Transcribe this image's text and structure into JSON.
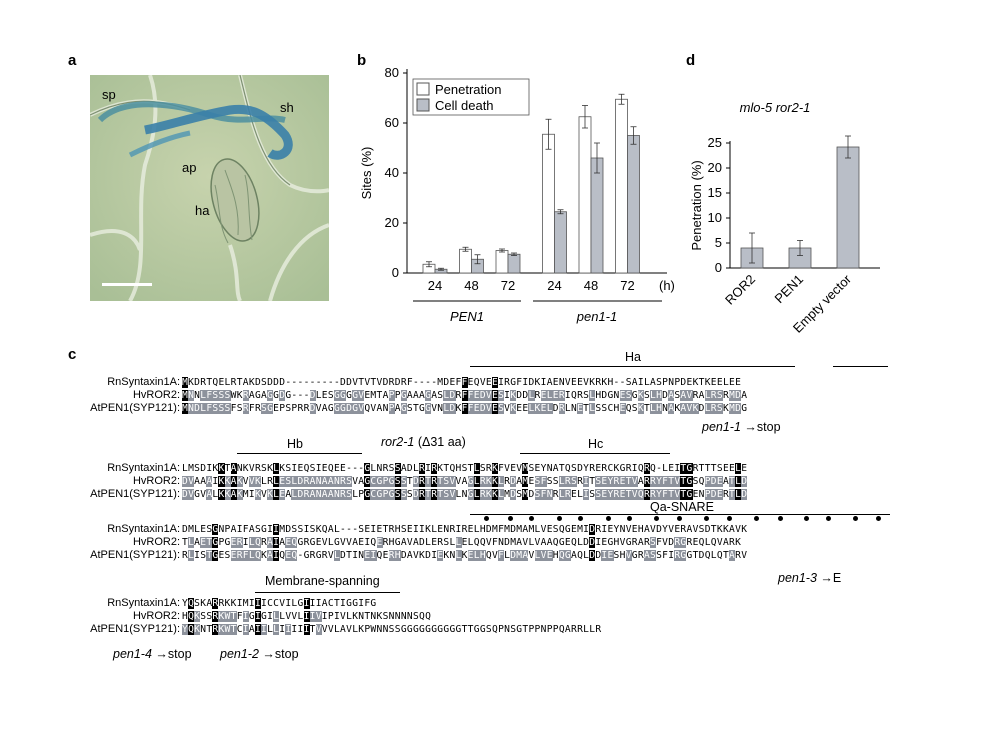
{
  "panels": {
    "a": "a",
    "b": "b",
    "c": "c",
    "d": "d"
  },
  "micro_labels": {
    "sp": "sp",
    "sh": "sh",
    "ap": "ap",
    "ha": "ha"
  },
  "chart_b": {
    "type": "bar",
    "ylabel": "Sites (%)",
    "ylim": [
      0,
      80
    ],
    "yticks": [
      "0",
      "20",
      "40",
      "60",
      "80"
    ],
    "x_unit": "(h)",
    "categories": [
      "24",
      "48",
      "72",
      "24",
      "48",
      "72"
    ],
    "groups": [
      "PEN1",
      "pen1-1"
    ],
    "series": [
      {
        "name": "Penetration",
        "values": [
          3.5,
          9.5,
          9,
          55.5,
          62.5,
          69.5
        ],
        "errors": [
          1,
          0.8,
          0.6,
          6,
          4.5,
          2
        ]
      },
      {
        "name": "Cell death",
        "values": [
          1.5,
          5.5,
          7.5,
          24.5,
          46,
          55
        ],
        "errors": [
          0.4,
          1.8,
          0.5,
          0.8,
          6,
          3.5
        ]
      }
    ],
    "colors": {
      "penetration": "#ffffff",
      "cell_death": "#b9bec7"
    }
  },
  "chart_d": {
    "type": "bar",
    "title": "mlo-5 ror2-1",
    "ylabel": "Penetration (%)",
    "ylim": [
      0,
      25
    ],
    "yticks": [
      "0",
      "5",
      "10",
      "15",
      "20",
      "25"
    ],
    "categories": [
      "ROR2",
      "PEN1",
      "Empty vector"
    ],
    "values": [
      4,
      4,
      24.2
    ],
    "errors": [
      3,
      1.5,
      2.2
    ],
    "color": "#b9bec7"
  },
  "chart_data": [
    {
      "type": "bar",
      "ylabel": "Sites (%)",
      "ylim": [
        0,
        80
      ],
      "x_unit": "(h)",
      "categories": [
        "24",
        "48",
        "72",
        "24",
        "48",
        "72"
      ],
      "groups": [
        "PEN1",
        "pen1-1"
      ],
      "series": [
        {
          "name": "Penetration",
          "values": [
            3.5,
            9.5,
            9,
            55.5,
            62.5,
            69.5
          ]
        },
        {
          "name": "Cell death",
          "values": [
            1.5,
            5.5,
            7.5,
            24.5,
            46,
            55
          ]
        }
      ]
    },
    {
      "type": "bar",
      "title": "mlo-5 ror2-1",
      "ylabel": "Penetration (%)",
      "ylim": [
        0,
        25
      ],
      "categories": [
        "ROR2",
        "PEN1",
        "Empty vector"
      ],
      "values": [
        4,
        4,
        24.2
      ]
    }
  ],
  "alignment": {
    "names": [
      "RnSyntaxin1A:",
      "HvROR2:",
      "AtPEN1(SYP121):"
    ],
    "blocks": [
      {
        "rows": [
          "MKDRTQELRTAKDSDDD---------DDVTVTVDRDRF----MDEFFEQVEEIRGFIDKIAENVEEVKRKH--SAILASPNPDEKTKEELEE",
          "MNNLFSSSWKRAGAGGDG---DLESGGGGVEMTAPPGAAAGASLDRFFEDVESIKDDLRELERIQRSLHDGNESGKSLHDASAVRALRSRMDA",
          "MNDLFSSSFSRFRSGEPSPRRDVAGGGDGVQVANPAGSTGGVNLDKFFEDVESVKEELKELDRLNETLSSCHEQSKTLHNAKAVKDLRSKMDG"
        ]
      },
      {
        "rows": [
          "LMSDIKKTANKVRSKLKSIEQSIEQEE---GLNRSSADLRIRKTQHSTLSRKFVEVMSEYNATQSDYRERCKGRIQRQ-LEITGRTTTSEELE",
          "DVAAAIKKAKVVKLRLESLDRANAANRSVAGCGPGSSTDRTRTSVVAGLRKKLRDAMESFSSLRSRITSEYRETVARRYFTVTGSQPDEATLD",
          "DVGVALKKAKMIKVKLEALDRANAANRSLPGCGPGSSSDRTRTSVLNGLRKKLMDSMDSFNRLRELISSEYRETVQRRYFTVTGENPDERTLD"
        ]
      },
      {
        "rows": [
          "DMLESGNPAIFASGIIMDSSISKQAL---SEIETRHSEIIKLENRIRELHDMFMDMAMLVESQGEMIDRIEYNVEHAVDYVERAVSDTKKAVK",
          "TLAETGPGERILQRAIAEQGRGEVLGVVAEIQERHGAVADLERSLLELQQVFNDMAVLVAAQGEQLDDIEGHVGRARSFVDRGREQLQVARK",
          "RLISTGESERFLQKAIQEQ-GRGRVLDTINEIQERHDAVKDIEKNLKELHQVFLDMAVLVEHQGAQLDDIESHVGRASSFIRGGTDQLQTARV"
        ]
      },
      {
        "rows": [
          "YQSKARRKKIMIIICCVILGIIIACTIGGIFG",
          "HQKSSRKWTFIGIGILLVVLIIVIPIVLKNTNKSNNNNSQQ",
          "YQKNTRKWTCIAIILLIIIIITVVVLAVLKPWNNSSGGGGGGGGGGTTGGSQPNSGTPPNPPQARRLLR"
        ]
      }
    ]
  },
  "annotations": {
    "ha": "Ha",
    "hb": "Hb",
    "hc": "Hc",
    "qa_snare": "Qa-SNARE",
    "membrane": "Membrane-spanning",
    "ror2_1": "ror2-1",
    "ror2_1_note": " (Δ31 aa)",
    "pen1_1": "pen1-1",
    "pen1_1_note": "stop",
    "pen1_3": "pen1-3",
    "pen1_3_note": "E",
    "pen1_4": "pen1-4",
    "pen1_4_note": "stop",
    "pen1_2": "pen1-2",
    "pen1_2_note": "stop",
    "arrow": "→"
  }
}
